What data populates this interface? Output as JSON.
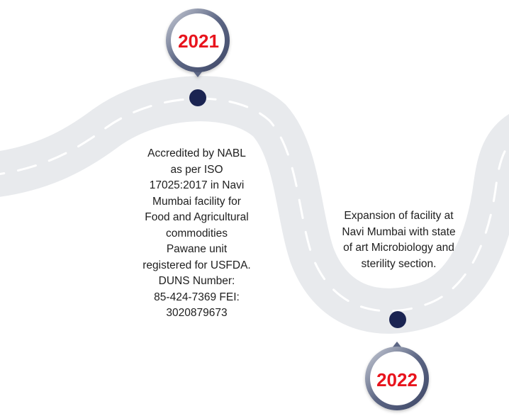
{
  "milestones": [
    {
      "year": "2021",
      "lines": [
        "Accredited by NABL",
        "as per ISO",
        "17025:2017 in Navi",
        "Mumbai facility for",
        "Food and Agricultural",
        "commodities",
        "Pawane unit",
        "registered for USFDA.",
        "DUNS Number:",
        "85-424-7369 FEI:",
        "3020879673"
      ]
    },
    {
      "year": "2022",
      "lines": [
        "Expansion of facility at",
        "Navi Mumbai with state",
        "of art Microbiology and",
        "sterility section."
      ]
    }
  ],
  "colors": {
    "road": "#e8eaed",
    "lane_marking": "#ffffff",
    "node": "#1b2452",
    "badge_ring": "#5c6684",
    "badge_ring_light": "#cdd1da",
    "year_text": "#e8141d",
    "body_text": "#1e1e1e"
  },
  "icons": [
    "map-pin-icon",
    "timeline-node-icon"
  ]
}
